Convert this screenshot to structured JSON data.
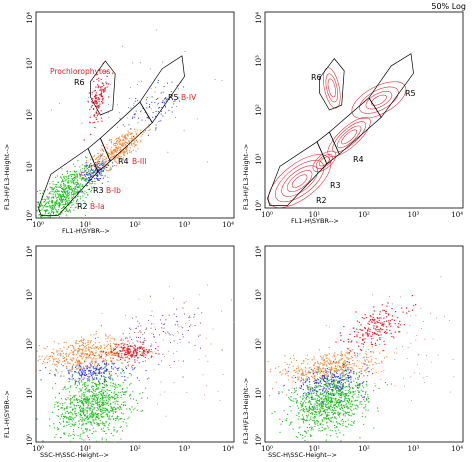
{
  "log_label": "50% Log",
  "colors": {
    "green": "#1fbf1f",
    "orange": "#f58a3c",
    "red": "#e8202a",
    "blue": "#2a3fd6",
    "purple": "#7a3fa8",
    "gate": "#000000",
    "contour": "#e0303a"
  },
  "chart_data": [
    {
      "id": "top-left",
      "type": "scatter",
      "xlabel": "FL1-H\\SYBR-->",
      "ylabel": "FL3-H\\FL3-Height-->",
      "xlim": [
        1,
        10000
      ],
      "ylim": [
        1,
        10000
      ],
      "xscale": "log",
      "yscale": "log",
      "x_ticks": [
        "10⁰",
        "10¹",
        "10²",
        "10³",
        "10⁴"
      ],
      "y_ticks": [
        "10⁰",
        "10¹",
        "10²",
        "10³",
        "10⁴"
      ],
      "gates": [
        {
          "name": "R2",
          "sub": "B-Ia"
        },
        {
          "name": "R3",
          "sub": "B-Ib"
        },
        {
          "name": "R4",
          "sub": "B-III"
        },
        {
          "name": "R5",
          "sub": "B-IV"
        },
        {
          "name": "R6",
          "sub": ""
        }
      ],
      "annotation": "Prochlorophytes"
    },
    {
      "id": "top-right",
      "type": "contour",
      "xlabel": "FL1-H\\SYBR-->",
      "ylabel": "FL3-H\\FL3-Height-->",
      "xlim": [
        1,
        10000
      ],
      "ylim": [
        1,
        10000
      ],
      "xscale": "log",
      "yscale": "log",
      "x_ticks": [
        "10⁰",
        "10¹",
        "10²",
        "10³",
        "10⁴"
      ],
      "y_ticks": [
        "10⁰",
        "10¹",
        "10²",
        "10³",
        "10⁴"
      ],
      "gates": [
        {
          "name": "R2"
        },
        {
          "name": "R3"
        },
        {
          "name": "R4"
        },
        {
          "name": "R5"
        },
        {
          "name": "R6"
        }
      ]
    },
    {
      "id": "bottom-left",
      "type": "scatter",
      "xlabel": "SSC-H\\SSC-Height-->",
      "ylabel": "FL1-H\\SYBR-->",
      "xlim": [
        1,
        10000
      ],
      "ylim": [
        1,
        10000
      ],
      "xscale": "log",
      "yscale": "log",
      "x_ticks": [
        "10⁰",
        "10¹",
        "10²",
        "10³",
        "10⁴"
      ],
      "y_ticks": [
        "10⁰",
        "10¹",
        "10²",
        "10³",
        "10⁴"
      ]
    },
    {
      "id": "bottom-right",
      "type": "scatter",
      "xlabel": "SSC-H\\SSC-Height-->",
      "ylabel": "FL3-H\\FL3-Height-->",
      "xlim": [
        1,
        10000
      ],
      "ylim": [
        1,
        10000
      ],
      "xscale": "log",
      "yscale": "log",
      "x_ticks": [
        "10⁰",
        "10¹",
        "10²",
        "10³",
        "10⁴"
      ],
      "y_ticks": [
        "10⁰",
        "10¹",
        "10²",
        "10³",
        "10⁴"
      ]
    }
  ]
}
